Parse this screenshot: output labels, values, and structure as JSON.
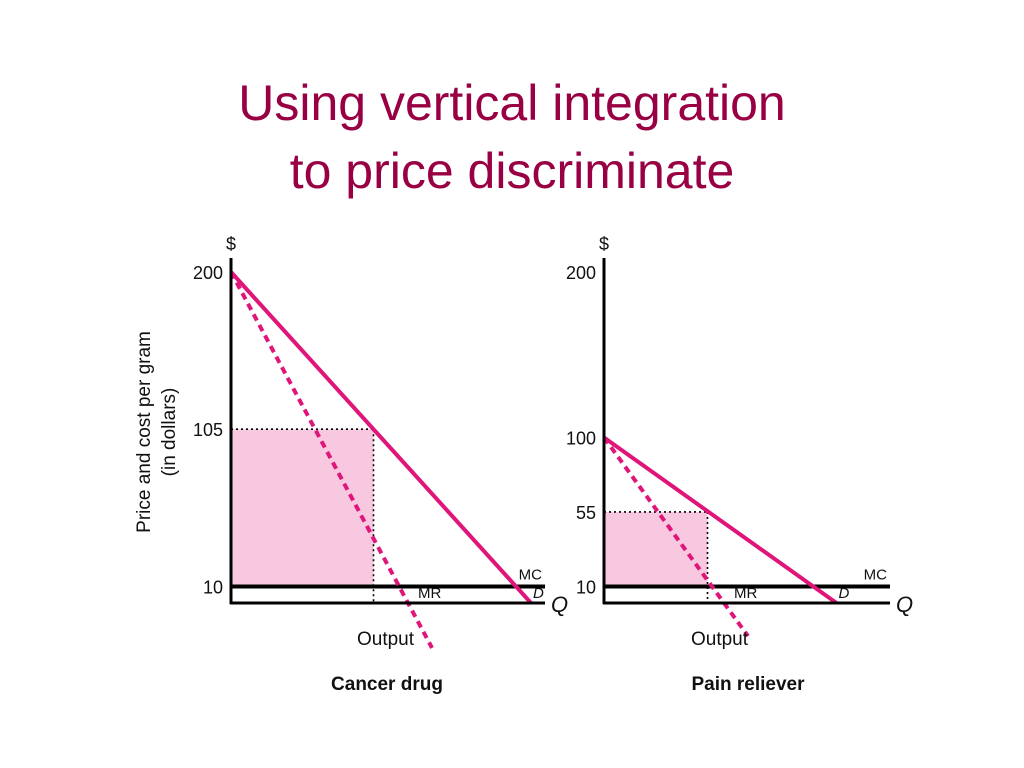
{
  "title": {
    "line1": "Using vertical integration",
    "line2": "to price discriminate"
  },
  "colors": {
    "title": "#990044",
    "curve": "#E0157A",
    "area_fill": "#F8C8E0",
    "axis": "#000000"
  },
  "shared_ylabel": {
    "line1": "Price and cost per gram",
    "line2": "(in dollars)"
  },
  "chart_data": [
    {
      "type": "line",
      "caption": "Cancer drug",
      "yaxis_symbol": "$",
      "xaxis_symbol": "Q",
      "xlabel": "Output",
      "ylim": [
        0,
        200
      ],
      "y_ticks": [
        200,
        105,
        10
      ],
      "xlim": [
        0,
        200
      ],
      "demand": {
        "label": "D",
        "points": [
          [
            0,
            200
          ],
          [
            200,
            0
          ]
        ]
      },
      "marginal_revenue": {
        "label": "MR",
        "style": "dashed",
        "points": [
          [
            0,
            200
          ],
          [
            118,
            0
          ]
        ]
      },
      "marginal_cost": {
        "label": "MC",
        "value": 10
      },
      "optimum": {
        "quantity": 95,
        "price": 105
      },
      "shaded_profit_area": true
    },
    {
      "type": "line",
      "caption": "Pain reliever",
      "yaxis_symbol": "$",
      "xaxis_symbol": "Q",
      "xlabel": "Output",
      "ylim": [
        0,
        200
      ],
      "y_ticks": [
        200,
        100,
        55,
        10
      ],
      "xlim": [
        0,
        200
      ],
      "demand": {
        "label": "D",
        "points": [
          [
            0,
            100
          ],
          [
            155,
            0
          ]
        ]
      },
      "marginal_revenue": {
        "label": "MR",
        "style": "dashed",
        "points": [
          [
            0,
            100
          ],
          [
            80,
            0
          ]
        ]
      },
      "marginal_cost": {
        "label": "MC",
        "value": 10
      },
      "optimum": {
        "quantity": 69,
        "price": 55
      },
      "shaded_profit_area": true
    }
  ]
}
